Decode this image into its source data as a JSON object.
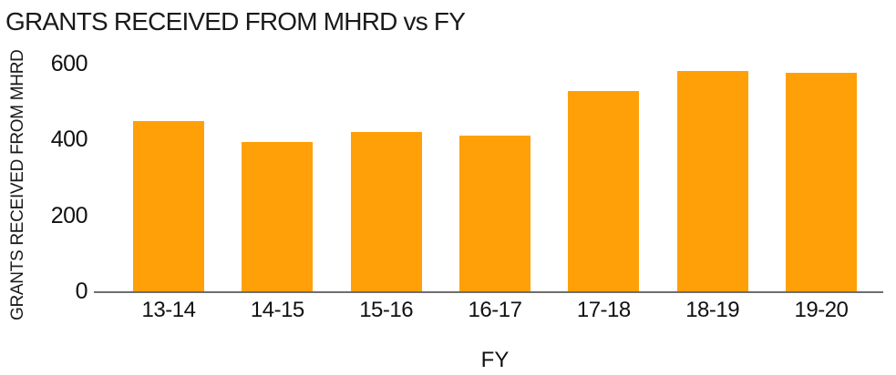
{
  "chart_data": {
    "type": "bar",
    "title": "GRANTS RECEIVED FROM MHRD vs FY",
    "xlabel": "FY",
    "ylabel": "GRANTS RECEIVED FROM MHRD",
    "categories": [
      "13-14",
      "14-15",
      "15-16",
      "16-17",
      "17-18",
      "18-19",
      "19-20"
    ],
    "values": [
      448,
      393,
      420,
      410,
      527,
      580,
      576
    ],
    "yticks": [
      0,
      200,
      400,
      600
    ],
    "ylim": [
      0,
      620
    ],
    "grid": false,
    "legend_position": "none",
    "colors": {
      "bar": "#FFA008",
      "axis_line": "#6E6E6E",
      "text": "#111111",
      "title_text": "#1A1A1A"
    }
  }
}
